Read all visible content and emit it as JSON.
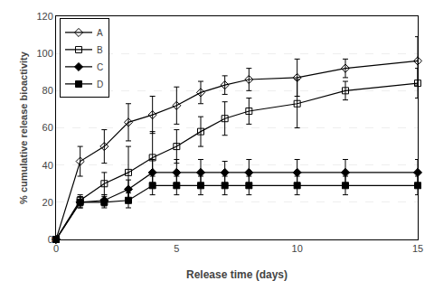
{
  "chart_data": {
    "type": "line",
    "xlabel": "Release time (days)",
    "ylabel": "% cumulative release bioactivity",
    "x": [
      0,
      1,
      2,
      3,
      4,
      5,
      6,
      7,
      8,
      10,
      12,
      15
    ],
    "series": [
      {
        "name": "A",
        "color": "black",
        "marker": "diamond-open",
        "line_style": "solid",
        "values": [
          0,
          42,
          50,
          63,
          67,
          72,
          79,
          83,
          86,
          87,
          92,
          96
        ],
        "errors": [
          0,
          8,
          9,
          10,
          10,
          10,
          6,
          5,
          6,
          10,
          5,
          13
        ]
      },
      {
        "name": "B",
        "color": "black",
        "marker": "square-open",
        "line_style": "solid",
        "values": [
          0,
          21,
          30,
          36,
          44,
          50,
          58,
          65,
          69,
          73,
          80,
          84
        ],
        "errors": [
          0,
          3,
          6,
          14,
          14,
          9,
          8,
          9,
          7,
          13,
          5,
          8
        ]
      },
      {
        "name": "C",
        "color": "black",
        "marker": "diamond",
        "line_style": "solid",
        "values": [
          0,
          20,
          21,
          27,
          36,
          36,
          36,
          36,
          36,
          36,
          36,
          36
        ],
        "errors": [
          0,
          3,
          3,
          5,
          7,
          7,
          7,
          6,
          7,
          7,
          7,
          7
        ]
      },
      {
        "name": "D",
        "color": "black",
        "marker": "square",
        "line_style": "solid",
        "values": [
          0,
          20,
          20,
          21,
          29,
          29,
          29,
          29,
          29,
          29,
          29,
          29
        ],
        "errors": [
          0,
          3,
          3,
          4,
          5,
          5,
          5,
          5,
          5,
          5,
          5,
          5
        ]
      }
    ],
    "xlim": [
      0,
      15
    ],
    "xticks": [
      0,
      5,
      10,
      15
    ],
    "ylim": [
      0,
      120
    ],
    "yticks": [
      0,
      20,
      40,
      60,
      80,
      100,
      120
    ],
    "grid": "y",
    "legend": "upper left"
  }
}
